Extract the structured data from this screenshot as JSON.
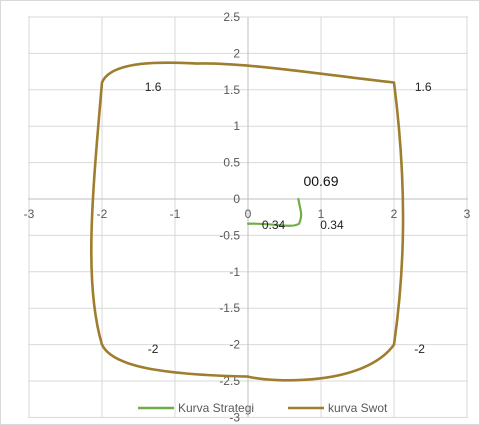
{
  "chart_data": {
    "type": "scatter",
    "title": "",
    "xlabel": "",
    "ylabel": "",
    "xlim": [
      -3,
      3
    ],
    "ylim": [
      -2.5,
      2.5
    ],
    "x_ticks": [
      "-3",
      "-2",
      "-1",
      "0",
      "1",
      "2",
      "3"
    ],
    "y_ticks": [
      "2.5",
      "2",
      "1.5",
      "1",
      "0.5",
      "0",
      "-0.5",
      "-1",
      "-1.5",
      "-2",
      "-2.5",
      "-3"
    ],
    "grid": true,
    "legend_position": "bottom",
    "series": [
      {
        "name": "Kurva Strategi",
        "color": "#70ad47",
        "points": [
          [
            0,
            -0.34
          ],
          [
            0.7,
            -0.34
          ],
          [
            0.69,
            0
          ]
        ],
        "labels": [
          {
            "text": "0.34",
            "x": 0.35,
            "y": -0.34
          },
          {
            "text": "0.34",
            "x": 1.15,
            "y": -0.34
          },
          {
            "text": "00.69",
            "x": 1.0,
            "y": 0.25
          }
        ]
      },
      {
        "name": "kurva Swot",
        "color": "#9e7e2e",
        "points": [
          [
            -2,
            1.6
          ],
          [
            2,
            1.6
          ],
          [
            2,
            -2
          ],
          [
            -2,
            -2
          ]
        ],
        "labels": [
          {
            "text": "1.6",
            "x": -1.3,
            "y": 1.55
          },
          {
            "text": "1.6",
            "x": 2.4,
            "y": 1.55
          },
          {
            "text": "-2",
            "x": 2.35,
            "y": -2.05
          },
          {
            "text": "-2",
            "x": -1.3,
            "y": -2.05
          }
        ]
      }
    ]
  }
}
